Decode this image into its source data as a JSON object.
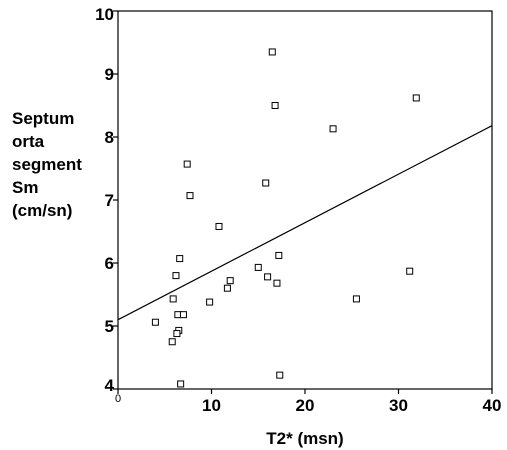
{
  "chart_data": {
    "type": "scatter",
    "title": "",
    "xlabel": "T2* (msn)",
    "ylabel_lines": [
      "Septum",
      "orta",
      "segment",
      "Sm",
      "(cm/sn)"
    ],
    "xlim": [
      0,
      40
    ],
    "ylim": [
      4,
      10
    ],
    "xticks": [
      {
        "value": 0,
        "label": "0"
      },
      {
        "value": 10,
        "label": "10"
      },
      {
        "value": 20,
        "label": "20"
      },
      {
        "value": 30,
        "label": "30"
      },
      {
        "value": 40,
        "label": "40"
      }
    ],
    "yticks": [
      {
        "value": 4,
        "label": "4"
      },
      {
        "value": 5,
        "label": "5"
      },
      {
        "value": 6,
        "label": "6"
      },
      {
        "value": 7,
        "label": "7"
      },
      {
        "value": 8,
        "label": "8"
      },
      {
        "value": 9,
        "label": "9"
      },
      {
        "value": 10,
        "label": "10"
      }
    ],
    "points": [
      {
        "x": 16.5,
        "y": 9.35
      },
      {
        "x": 16.8,
        "y": 8.5
      },
      {
        "x": 31.9,
        "y": 8.62
      },
      {
        "x": 23.0,
        "y": 8.13
      },
      {
        "x": 7.4,
        "y": 7.57
      },
      {
        "x": 7.7,
        "y": 7.07
      },
      {
        "x": 15.8,
        "y": 7.27
      },
      {
        "x": 10.8,
        "y": 6.58
      },
      {
        "x": 6.6,
        "y": 6.07
      },
      {
        "x": 17.2,
        "y": 6.12
      },
      {
        "x": 6.2,
        "y": 5.8
      },
      {
        "x": 15.0,
        "y": 5.93
      },
      {
        "x": 31.2,
        "y": 5.87
      },
      {
        "x": 16.0,
        "y": 5.78
      },
      {
        "x": 12.0,
        "y": 5.72
      },
      {
        "x": 17.0,
        "y": 5.68
      },
      {
        "x": 11.7,
        "y": 5.6
      },
      {
        "x": 5.9,
        "y": 5.43
      },
      {
        "x": 9.8,
        "y": 5.38
      },
      {
        "x": 25.5,
        "y": 5.43
      },
      {
        "x": 6.4,
        "y": 5.18
      },
      {
        "x": 7.0,
        "y": 5.18
      },
      {
        "x": 4.0,
        "y": 5.06
      },
      {
        "x": 6.5,
        "y": 4.93
      },
      {
        "x": 6.3,
        "y": 4.88
      },
      {
        "x": 5.8,
        "y": 4.75
      },
      {
        "x": 17.3,
        "y": 4.22
      },
      {
        "x": 6.7,
        "y": 4.08
      }
    ],
    "fit_line": {
      "x": [
        0,
        40
      ],
      "y": [
        5.1,
        8.18
      ]
    },
    "grid": false,
    "legend": "none"
  }
}
